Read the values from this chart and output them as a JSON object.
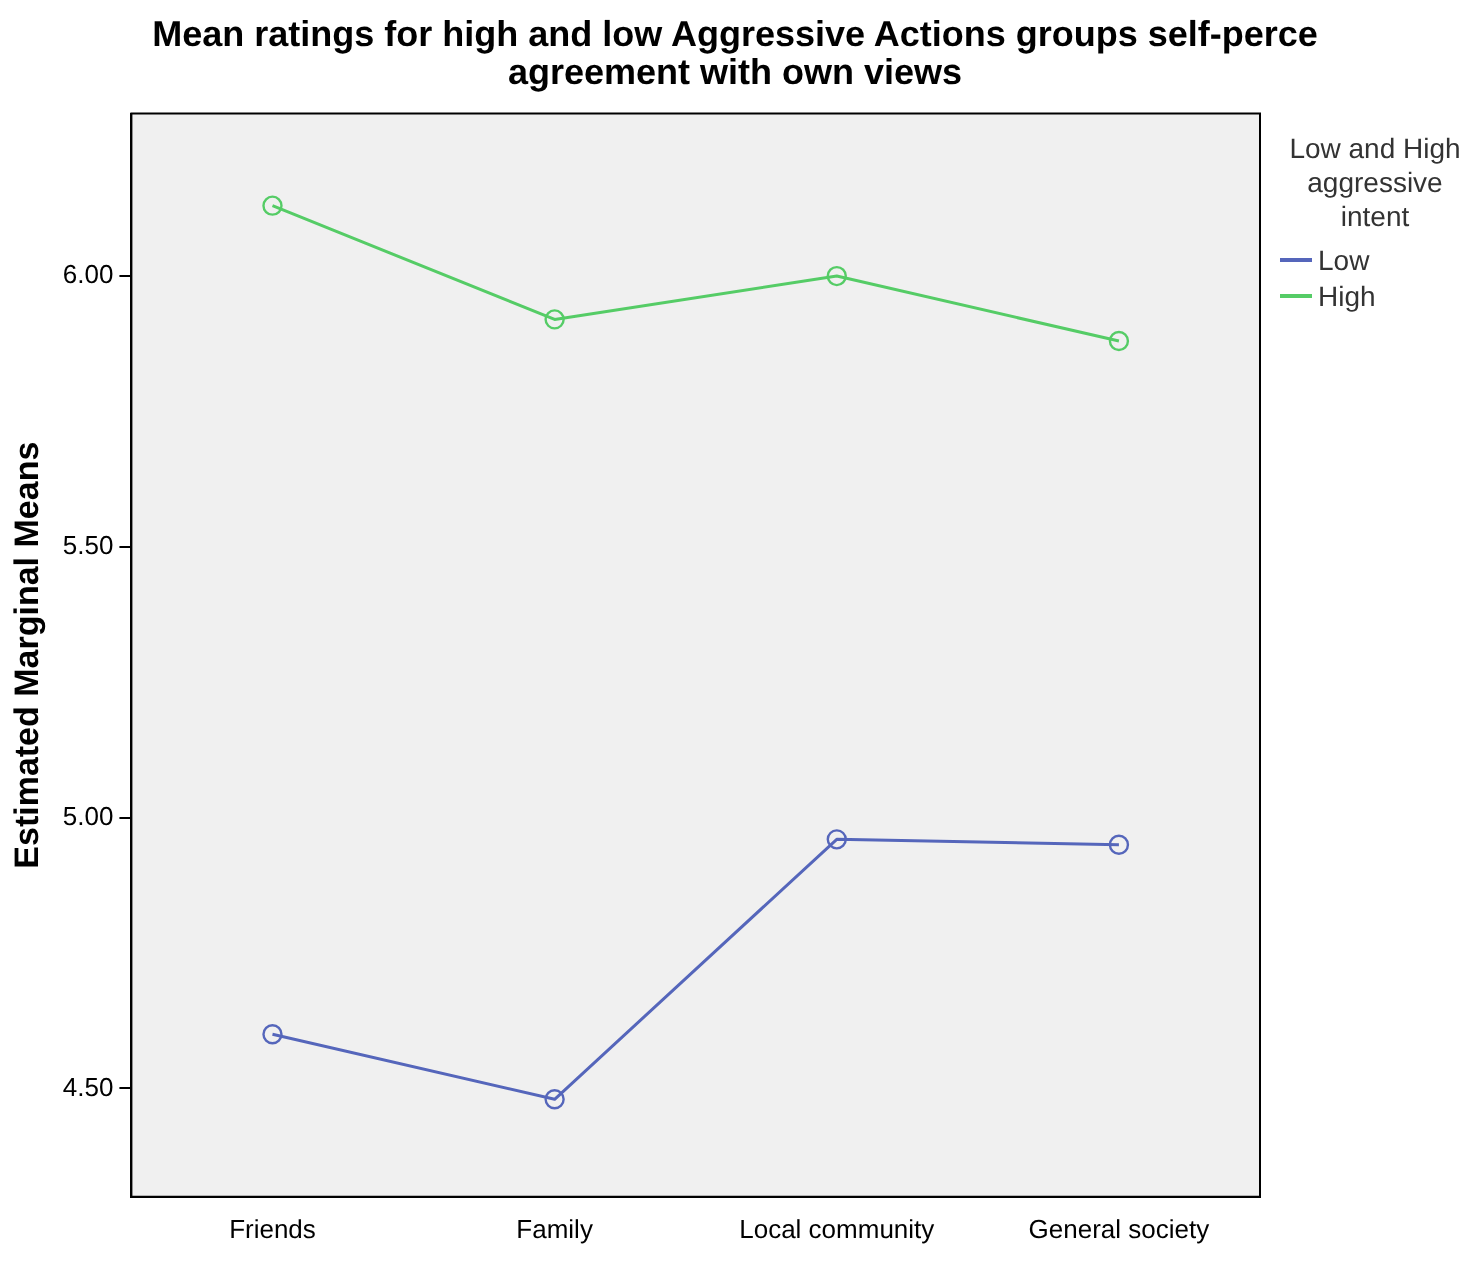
{
  "chart_data": {
    "type": "line",
    "title": "Mean ratings for high and low Aggressive Actions groups self-perce agreement with own views",
    "ylabel": "Estimated Marginal Means",
    "legend_title": "Low and High aggressive intent",
    "categories": [
      "Friends",
      "Family",
      "Local community",
      "General society"
    ],
    "series": [
      {
        "name": "Low",
        "color": "#5566bb",
        "values": [
          4.6,
          4.48,
          4.96,
          4.95
        ]
      },
      {
        "name": "High",
        "color": "#55cc66",
        "values": [
          6.13,
          5.92,
          6.0,
          5.88
        ]
      }
    ],
    "ylim": [
      4.3,
      6.3
    ],
    "yticks": [
      {
        "value": 4.5,
        "label": "4.50"
      },
      {
        "value": 5,
        "label": "5.00"
      },
      {
        "value": 5.5,
        "label": "5.50"
      },
      {
        "value": 6,
        "label": "6.00"
      }
    ],
    "grid": false,
    "legend": "right",
    "marker": "circle",
    "line_style": "solid"
  }
}
